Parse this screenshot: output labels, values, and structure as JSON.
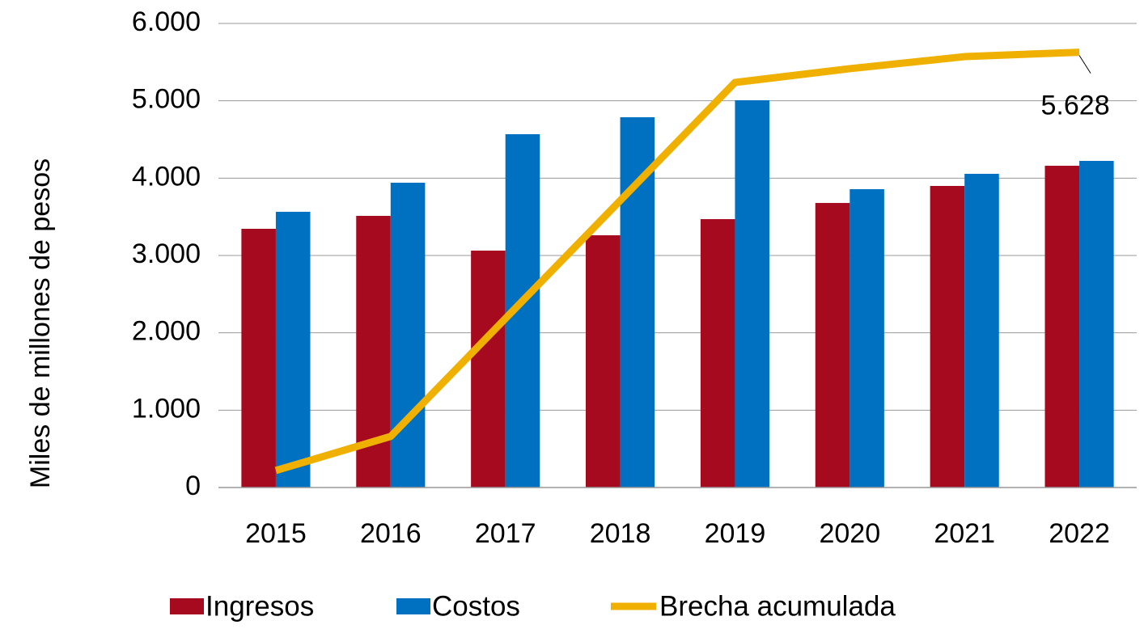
{
  "chart_data": {
    "type": "bar_line",
    "y_label": "Miles de millones de pesos",
    "categories": [
      "2015",
      "2016",
      "2017",
      "2018",
      "2019",
      "2020",
      "2021",
      "2022"
    ],
    "series": [
      {
        "name": "Ingresos",
        "type": "bar",
        "color": "#a50a1e",
        "values": [
          3345,
          3512,
          3063,
          3261,
          3470,
          3679,
          3899,
          4160
        ]
      },
      {
        "name": "Costos",
        "type": "bar",
        "color": "#0070c0",
        "values": [
          3565,
          3941,
          4568,
          4787,
          5007,
          3857,
          4056,
          4223
        ]
      },
      {
        "name": "Brecha acumulada",
        "type": "line",
        "color": "#f0b000",
        "values": [
          220,
          660,
          2185,
          3710,
          5237,
          5415,
          5571,
          5628
        ],
        "value_labels": [
          null,
          null,
          null,
          null,
          null,
          null,
          null,
          "5.628"
        ]
      }
    ],
    "ylim": [
      0,
      6000
    ],
    "yticks": [
      0,
      {
        "value": 1000,
        "label": "1.000"
      },
      {
        "value": 2000,
        "label": "2.000"
      },
      {
        "value": 3000,
        "label": "3.000"
      },
      {
        "value": 4000,
        "label": "4.000"
      },
      {
        "value": 5000,
        "label": "5.000"
      },
      {
        "value": 6000,
        "label": "6.000"
      }
    ],
    "grid": true,
    "legend": "bottom"
  }
}
